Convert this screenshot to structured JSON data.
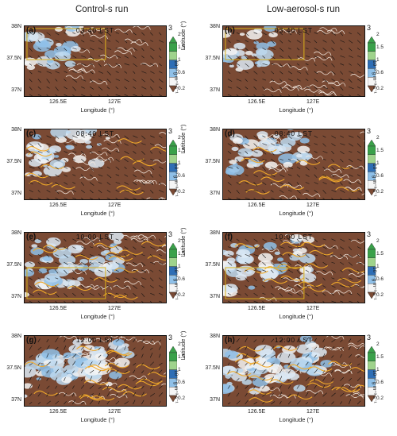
{
  "columns": [
    "Control-s run",
    "Low-aerosol-s run"
  ],
  "axis": {
    "ylabel": "Latitude (°)",
    "xlabel": "Longitude (°)",
    "yticks": [
      "38N",
      "37.5N",
      "37N"
    ],
    "xticks": [
      "126.5E",
      "127E"
    ]
  },
  "colorbar": {
    "ticks": [
      "2",
      "1.5",
      "1",
      "0.6",
      "0.2"
    ],
    "unit": "10⁻³ g m⁻³ s⁻¹",
    "colors": [
      "#3aa14a",
      "#9fd38c",
      "#2e6eb5",
      "#8fc0e8",
      "#f5f5f5",
      "#7a4a34"
    ]
  },
  "wind_scale": "3",
  "panels": [
    {
      "label": "(a)",
      "time": "03:40  LST"
    },
    {
      "label": "(b)",
      "time": "03:40  LST"
    },
    {
      "label": "(c)",
      "time": "08:40  LST"
    },
    {
      "label": "(d)",
      "time": "08:40  LST"
    },
    {
      "label": "(e)",
      "time": "10:00  LST"
    },
    {
      "label": "(f)",
      "time": "10:00  LST"
    },
    {
      "label": "(g)",
      "time": "12:00  LST"
    },
    {
      "label": "(h)",
      "time": "12:00  LST"
    }
  ]
}
